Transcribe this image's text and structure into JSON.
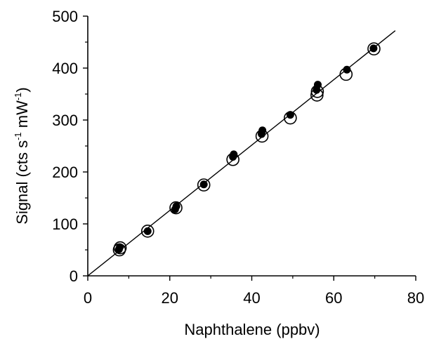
{
  "chart_data": {
    "type": "scatter",
    "title": "",
    "xlabel": "Naphthalene  (ppbv)",
    "ylabel_main": "Signal  (cts s",
    "ylabel_sup1": "-1",
    "ylabel_mid": " mW",
    "ylabel_sup2": "-1",
    "ylabel_end": ")",
    "xlim": [
      0,
      80
    ],
    "ylim": [
      0,
      500
    ],
    "x_ticks": [
      0,
      20,
      40,
      60,
      80
    ],
    "y_ticks": [
      0,
      100,
      200,
      300,
      400,
      500
    ],
    "grid": false,
    "legend": "none",
    "series": [
      {
        "marker": "filled-circle",
        "color": "#000000",
        "points": [
          [
            7.6,
            51
          ],
          [
            7.8,
            55
          ],
          [
            14.6,
            86
          ],
          [
            21.3,
            128
          ],
          [
            21.6,
            134
          ],
          [
            28.3,
            176
          ],
          [
            35.4,
            229
          ],
          [
            35.6,
            234
          ],
          [
            42.4,
            273
          ],
          [
            42.6,
            280
          ],
          [
            49.4,
            310
          ],
          [
            55.8,
            358
          ],
          [
            56.1,
            368
          ],
          [
            63.2,
            397
          ],
          [
            69.7,
            438
          ]
        ]
      },
      {
        "marker": "open-circle",
        "color": "#000000",
        "points": [
          [
            7.7,
            50
          ],
          [
            7.9,
            54
          ],
          [
            14.6,
            86
          ],
          [
            21.5,
            131
          ],
          [
            28.3,
            175
          ],
          [
            35.4,
            224
          ],
          [
            42.5,
            269
          ],
          [
            49.4,
            304
          ],
          [
            55.9,
            348
          ],
          [
            56.0,
            355
          ],
          [
            63.0,
            388
          ],
          [
            69.8,
            437
          ]
        ]
      }
    ],
    "fit_line": {
      "x": [
        0,
        75
      ],
      "y": [
        0,
        472
      ]
    }
  }
}
